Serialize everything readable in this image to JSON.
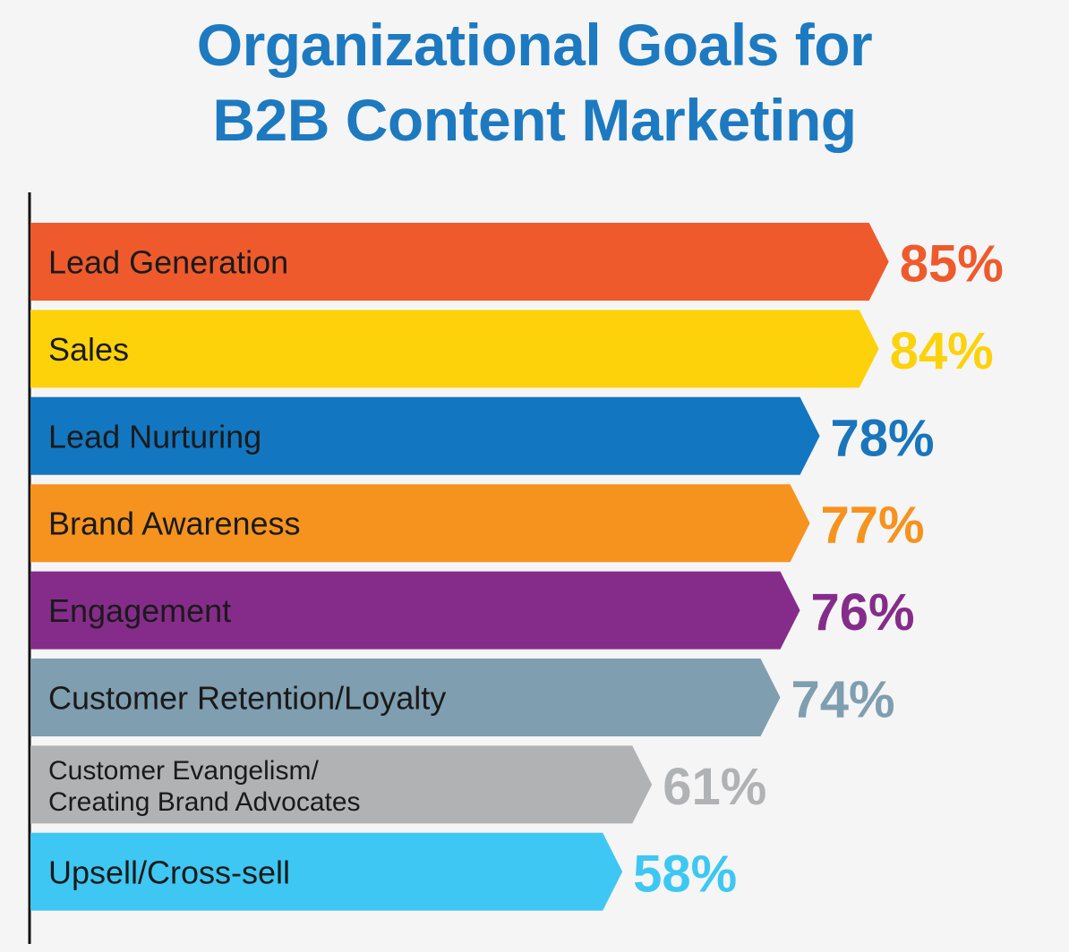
{
  "chart_data": {
    "type": "bar",
    "orientation": "horizontal",
    "title_lines": [
      "Organizational Goals for",
      "B2B Content Marketing"
    ],
    "categories": [
      "Lead Generation",
      "Sales",
      "Lead Nurturing",
      "Brand Awareness",
      "Engagement",
      "Customer Retention/Loyalty",
      "Customer Evangelism/\nCreating Brand Advocates",
      "Upsell/Cross-sell"
    ],
    "values": [
      85,
      84,
      78,
      77,
      76,
      74,
      61,
      58
    ],
    "value_labels": [
      "85%",
      "84%",
      "78%",
      "77%",
      "76%",
      "74%",
      "61%",
      "58%"
    ],
    "colors": [
      "#ef5a2c",
      "#fdd20a",
      "#1277c0",
      "#f6931f",
      "#852c8a",
      "#7f9eb0",
      "#b1b2b4",
      "#3ec7f2"
    ],
    "label_colors": [
      "#ef5a2c",
      "#fdd20a",
      "#1a75bb",
      "#f6931f",
      "#852c8a",
      "#7f9eb0",
      "#b1b2b4",
      "#3ec7f2"
    ],
    "unit": "%",
    "grid": false,
    "legend": "none"
  }
}
